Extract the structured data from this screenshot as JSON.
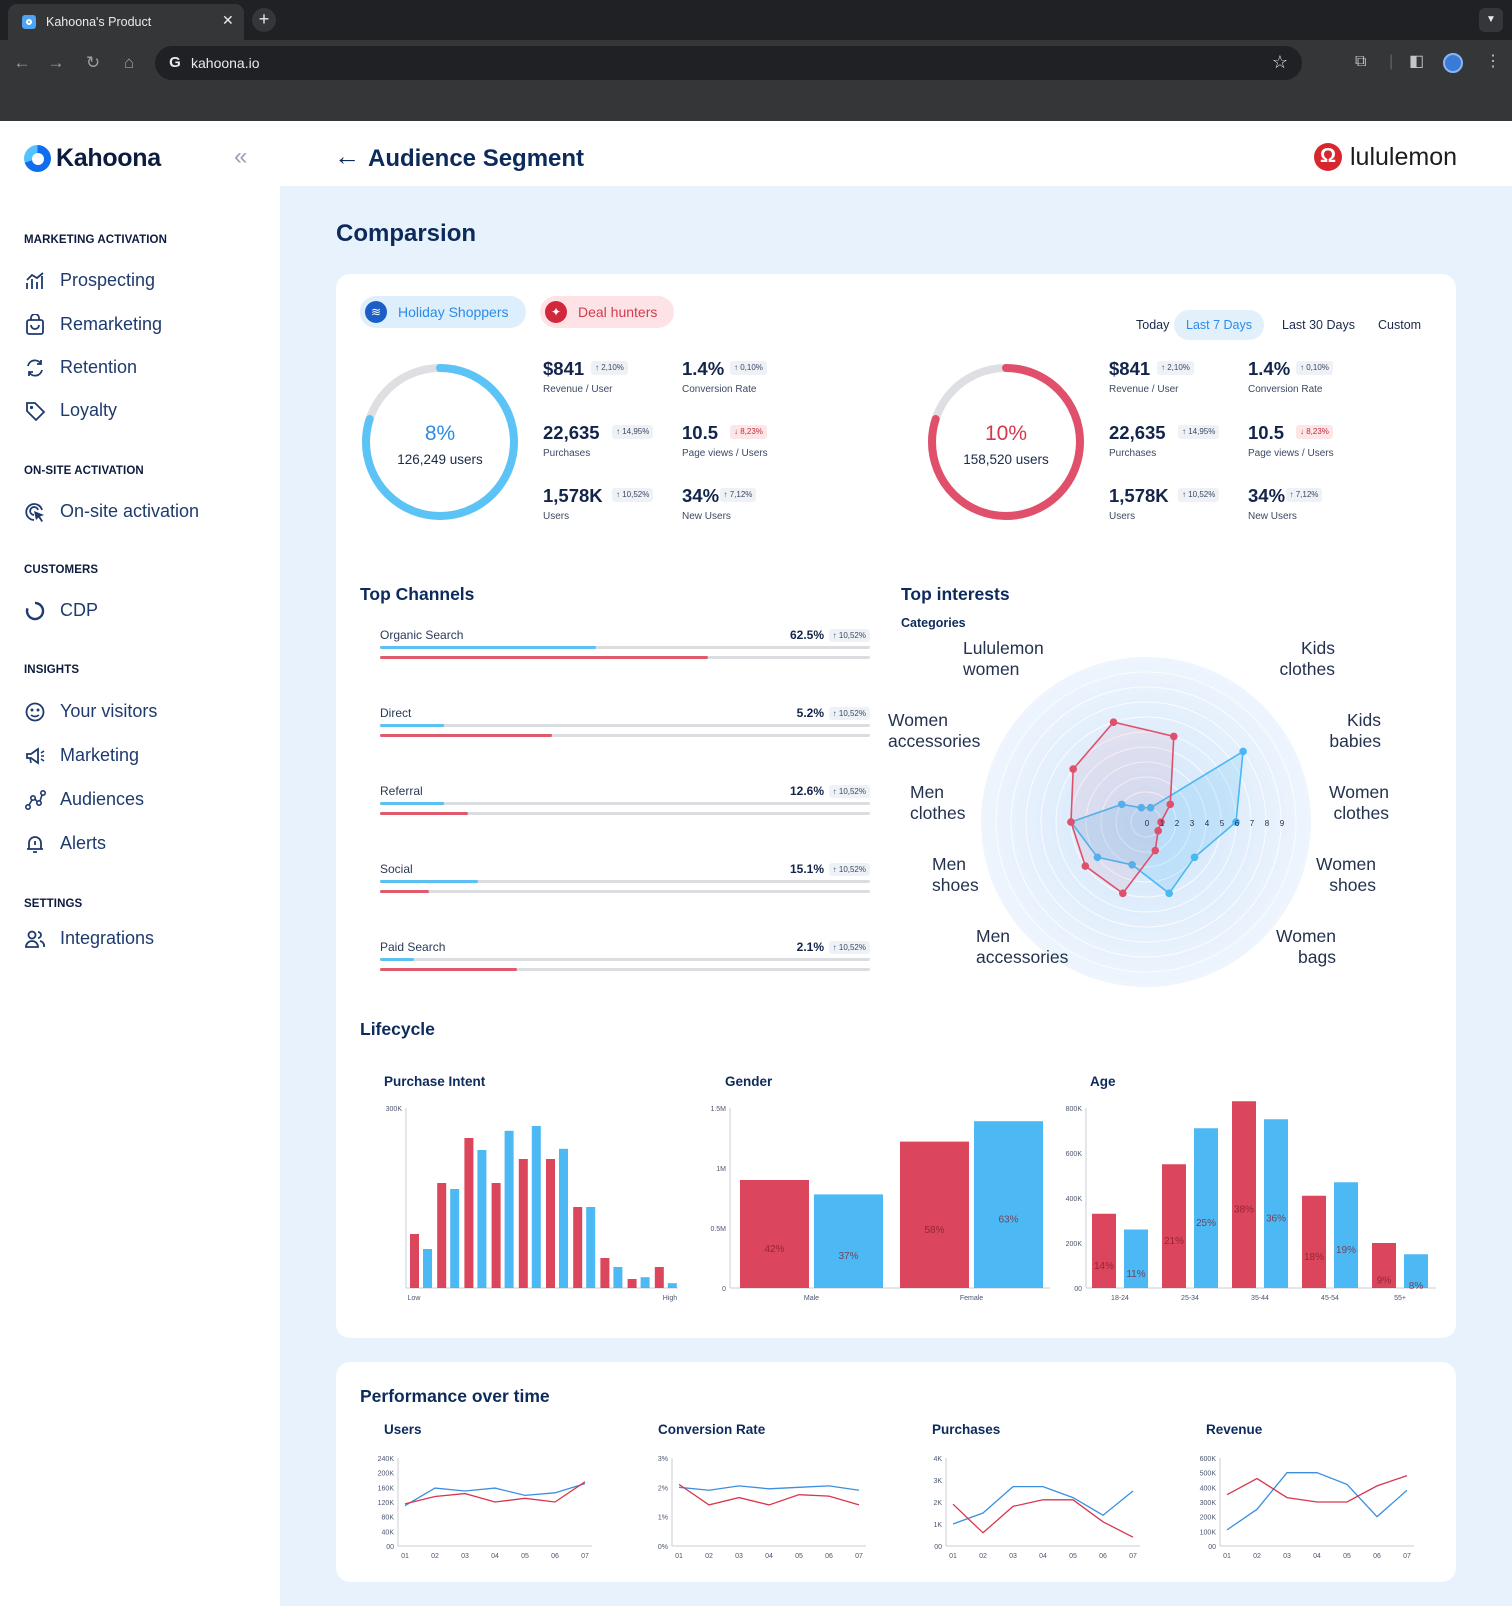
{
  "browser": {
    "tab_title": "Kahoona's Product",
    "url": "kahoona.io"
  },
  "sidebar": {
    "logo": "Kahoona",
    "sections": {
      "marketing": "MARKETING ACTIVATION",
      "onsite": "ON-SITE ACTIVATION",
      "customers": "CUSTOMERS",
      "insights": "INSIGHTS",
      "settings": "SETTINGS"
    },
    "items": {
      "prospecting": "Prospecting",
      "remarketing": "Remarketing",
      "retention": "Retention",
      "loyalty": "Loyalty",
      "onsite": "On-site activation",
      "cdp": "CDP",
      "visitors": "Your visitors",
      "marketing": "Marketing",
      "audiences": "Audiences",
      "alerts": "Alerts",
      "integrations": "Integrations"
    }
  },
  "header": {
    "title": "Audience Segment",
    "brand": "lululemon"
  },
  "comparison": {
    "title": "Comparsion",
    "segments": [
      "Holiday Shoppers",
      "Deal hunters"
    ],
    "ranges": [
      "Today",
      "Last 7 Days",
      "Last 30 Days",
      "Custom"
    ],
    "selected_range": "Last 7 Days",
    "colors": {
      "blue": "#4ab8f4",
      "red": "#e0506a"
    },
    "segment_a": {
      "pct": "8%",
      "users": "126,249 users",
      "share": 0.8,
      "stats": [
        {
          "value": "$841",
          "badge": "↑ 2,10%",
          "label": "Revenue / User",
          "neg": false
        },
        {
          "value": "1.4%",
          "badge": "↑ 0,10%",
          "label": "Conversion Rate",
          "neg": false
        },
        {
          "value": "22,635",
          "badge": "↑ 14,95%",
          "label": "Purchases",
          "neg": false
        },
        {
          "value": "10.5",
          "badge": "↓ 8,23%",
          "label": "Page views / Users",
          "neg": true
        },
        {
          "value": "1,578K",
          "badge": "↑ 10,52%",
          "label": "Users",
          "neg": false
        },
        {
          "value": "34%",
          "badge": "↑ 7,12%",
          "label": "New Users",
          "neg": false
        }
      ]
    },
    "segment_b": {
      "pct": "10%",
      "users": "158,520 users",
      "share": 0.8,
      "stats": [
        {
          "value": "$841",
          "badge": "↑ 2,10%",
          "label": "Revenue / User",
          "neg": false
        },
        {
          "value": "1.4%",
          "badge": "↑ 0,10%",
          "label": "Conversion Rate",
          "neg": false
        },
        {
          "value": "22,635",
          "badge": "↑ 14,95%",
          "label": "Purchases",
          "neg": false
        },
        {
          "value": "10.5",
          "badge": "↓ 8,23%",
          "label": "Page views / Users",
          "neg": true
        },
        {
          "value": "1,578K",
          "badge": "↑ 10,52%",
          "label": "Users",
          "neg": false
        },
        {
          "value": "34%",
          "badge": "↑ 7,12%",
          "label": "New Users",
          "neg": false
        }
      ]
    }
  },
  "top_channels": {
    "title": "Top Channels",
    "items": [
      {
        "name": "Organic Search",
        "pct": "62.5%",
        "badge": "↑ 10,52%",
        "blue": 0.44,
        "red": 0.67
      },
      {
        "name": "Direct",
        "pct": "5.2%",
        "badge": "↑ 10,52%",
        "blue": 0.13,
        "red": 0.35
      },
      {
        "name": "Referral",
        "pct": "12.6%",
        "badge": "↑ 10,52%",
        "blue": 0.13,
        "red": 0.18
      },
      {
        "name": "Social",
        "pct": "15.1%",
        "badge": "↑ 10,52%",
        "blue": 0.2,
        "red": 0.1
      },
      {
        "name": "Paid Search",
        "pct": "2.1%",
        "badge": "↑ 10,52%",
        "blue": 0.07,
        "red": 0.28
      }
    ]
  },
  "chart_data": [
    {
      "type": "radar",
      "title": "Top interests",
      "subtitle": "Categories",
      "axes": [
        "Lululemon women",
        "Kids clothes",
        "Kids babies",
        "Women clothes",
        "Women shoes",
        "Women bags",
        "Men accessories",
        "Men shoes",
        "Men clothes",
        "Women accessories"
      ],
      "scale_ticks": [
        "0",
        "1",
        "2",
        "3",
        "4",
        "5",
        "6",
        "7",
        "8",
        "9"
      ],
      "series": [
        {
          "name": "Holiday Shoppers",
          "values": [
            1,
            1,
            8,
            6,
            4,
            5,
            3,
            4,
            5,
            2
          ]
        },
        {
          "name": "Deal hunters",
          "values": [
            7,
            6,
            2,
            1,
            1,
            2,
            5,
            5,
            5,
            6
          ]
        }
      ]
    },
    {
      "type": "bar",
      "title": "Purchase Intent",
      "y_ticks": [
        "300K"
      ],
      "x_labels": [
        "Low",
        "High"
      ],
      "ylim": [
        0,
        300000
      ],
      "series": [
        {
          "name": "Deal hunters",
          "values": [
            90000,
            175000,
            250000,
            175000,
            215000,
            215000,
            135000,
            50000,
            15000,
            35000
          ]
        },
        {
          "name": "Holiday Shoppers",
          "values": [
            65000,
            165000,
            230000,
            262000,
            270000,
            232000,
            135000,
            35000,
            18000,
            8000
          ]
        }
      ]
    },
    {
      "type": "bar",
      "title": "Gender",
      "y_ticks": [
        "1.5M",
        "1M",
        "0.5M",
        "0"
      ],
      "categories": [
        "Male",
        "Female"
      ],
      "ylim": [
        0,
        1500000
      ],
      "series": [
        {
          "name": "Deal hunters",
          "values": [
            900000,
            1220000
          ],
          "labels": [
            "42%",
            "58%"
          ]
        },
        {
          "name": "Holiday Shoppers",
          "values": [
            780000,
            1390000
          ],
          "labels": [
            "37%",
            "63%"
          ]
        }
      ]
    },
    {
      "type": "bar",
      "title": "Age",
      "y_ticks": [
        "800K",
        "600K",
        "400K",
        "200K",
        "00"
      ],
      "categories": [
        "18-24",
        "25-34",
        "35-44",
        "45-54",
        "55+"
      ],
      "ylim": [
        0,
        800000
      ],
      "series": [
        {
          "name": "Deal hunters",
          "values": [
            330000,
            550000,
            830000,
            410000,
            200000
          ],
          "labels": [
            "14%",
            "21%",
            "38%",
            "18%",
            "9%"
          ]
        },
        {
          "name": "Holiday Shoppers",
          "values": [
            260000,
            710000,
            750000,
            470000,
            150000
          ],
          "labels": [
            "11%",
            "25%",
            "36%",
            "19%",
            "8%"
          ]
        }
      ]
    },
    {
      "type": "line",
      "title": "Users",
      "x": [
        "01",
        "02",
        "03",
        "04",
        "05",
        "06",
        "07"
      ],
      "y_ticks": [
        "240K",
        "200K",
        "160K",
        "120K",
        "80K",
        "40K",
        "00"
      ],
      "ylim": [
        0,
        240000
      ],
      "series": [
        {
          "name": "Holiday Shoppers",
          "values": [
            110000,
            158000,
            150000,
            158000,
            138000,
            145000,
            170000
          ]
        },
        {
          "name": "Deal hunters",
          "values": [
            115000,
            135000,
            143000,
            120000,
            130000,
            120000,
            175000
          ]
        }
      ]
    },
    {
      "type": "line",
      "title": "Conversion Rate",
      "x": [
        "01",
        "02",
        "03",
        "04",
        "05",
        "06",
        "07"
      ],
      "y_ticks": [
        "3%",
        "2%",
        "1%",
        "0%"
      ],
      "ylim": [
        0,
        3
      ],
      "series": [
        {
          "name": "Holiday Shoppers",
          "values": [
            2.0,
            1.9,
            2.05,
            1.95,
            2.0,
            2.05,
            1.9
          ]
        },
        {
          "name": "Deal hunters",
          "values": [
            2.1,
            1.4,
            1.65,
            1.4,
            1.75,
            1.7,
            1.4
          ]
        }
      ]
    },
    {
      "type": "line",
      "title": "Purchases",
      "x": [
        "01",
        "02",
        "03",
        "04",
        "05",
        "06",
        "07"
      ],
      "y_ticks": [
        "4K",
        "3K",
        "2K",
        "1K",
        "00"
      ],
      "ylim": [
        0,
        4000
      ],
      "series": [
        {
          "name": "Holiday Shoppers",
          "values": [
            1000,
            1500,
            2700,
            2700,
            2200,
            1400,
            2500
          ]
        },
        {
          "name": "Deal hunters",
          "values": [
            1900,
            600,
            1800,
            2100,
            2100,
            1100,
            400
          ]
        }
      ]
    },
    {
      "type": "line",
      "title": "Revenue",
      "x": [
        "01",
        "02",
        "03",
        "04",
        "05",
        "06",
        "07"
      ],
      "y_ticks": [
        "600K",
        "500K",
        "400K",
        "300K",
        "200K",
        "100K",
        "00"
      ],
      "ylim": [
        0,
        600000
      ],
      "series": [
        {
          "name": "Holiday Shoppers",
          "values": [
            110000,
            250000,
            500000,
            500000,
            420000,
            200000,
            380000
          ]
        },
        {
          "name": "Deal hunters",
          "values": [
            350000,
            460000,
            330000,
            300000,
            300000,
            410000,
            480000
          ]
        }
      ]
    }
  ],
  "lifecycle": {
    "title": "Lifecycle"
  },
  "performance": {
    "title": "Performance over time"
  }
}
